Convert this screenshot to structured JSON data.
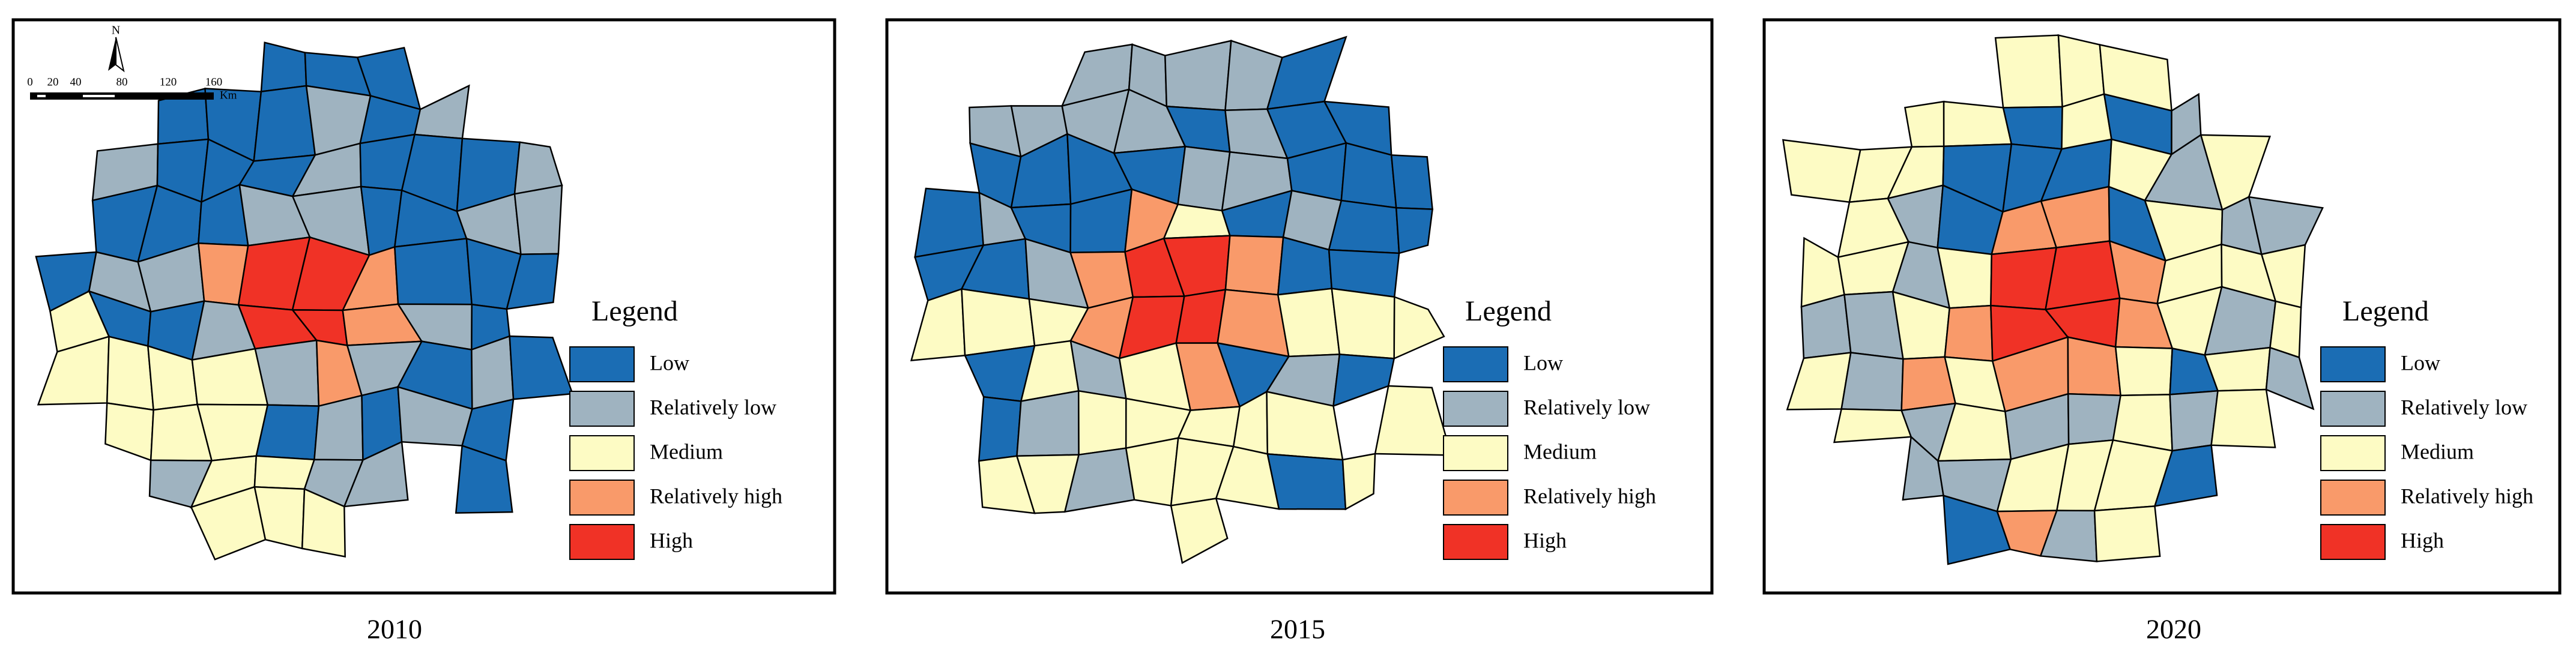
{
  "panels": [
    {
      "caption": "2010"
    },
    {
      "caption": "2015"
    },
    {
      "caption": "2020"
    }
  ],
  "legend": {
    "title": "Legend",
    "items": [
      {
        "label": "Low",
        "color": "#1b6db4"
      },
      {
        "label": "Relatively low",
        "color": "#9fb3c0"
      },
      {
        "label": "Medium",
        "color": "#fdfbc4"
      },
      {
        "label": "Relatively high",
        "color": "#f99a6a"
      },
      {
        "label": "High",
        "color": "#f03226"
      }
    ]
  },
  "scale_bar": {
    "north": "N",
    "ticks": [
      "0",
      "20",
      "40",
      "80",
      "120",
      "160"
    ],
    "unit": "Km"
  }
}
